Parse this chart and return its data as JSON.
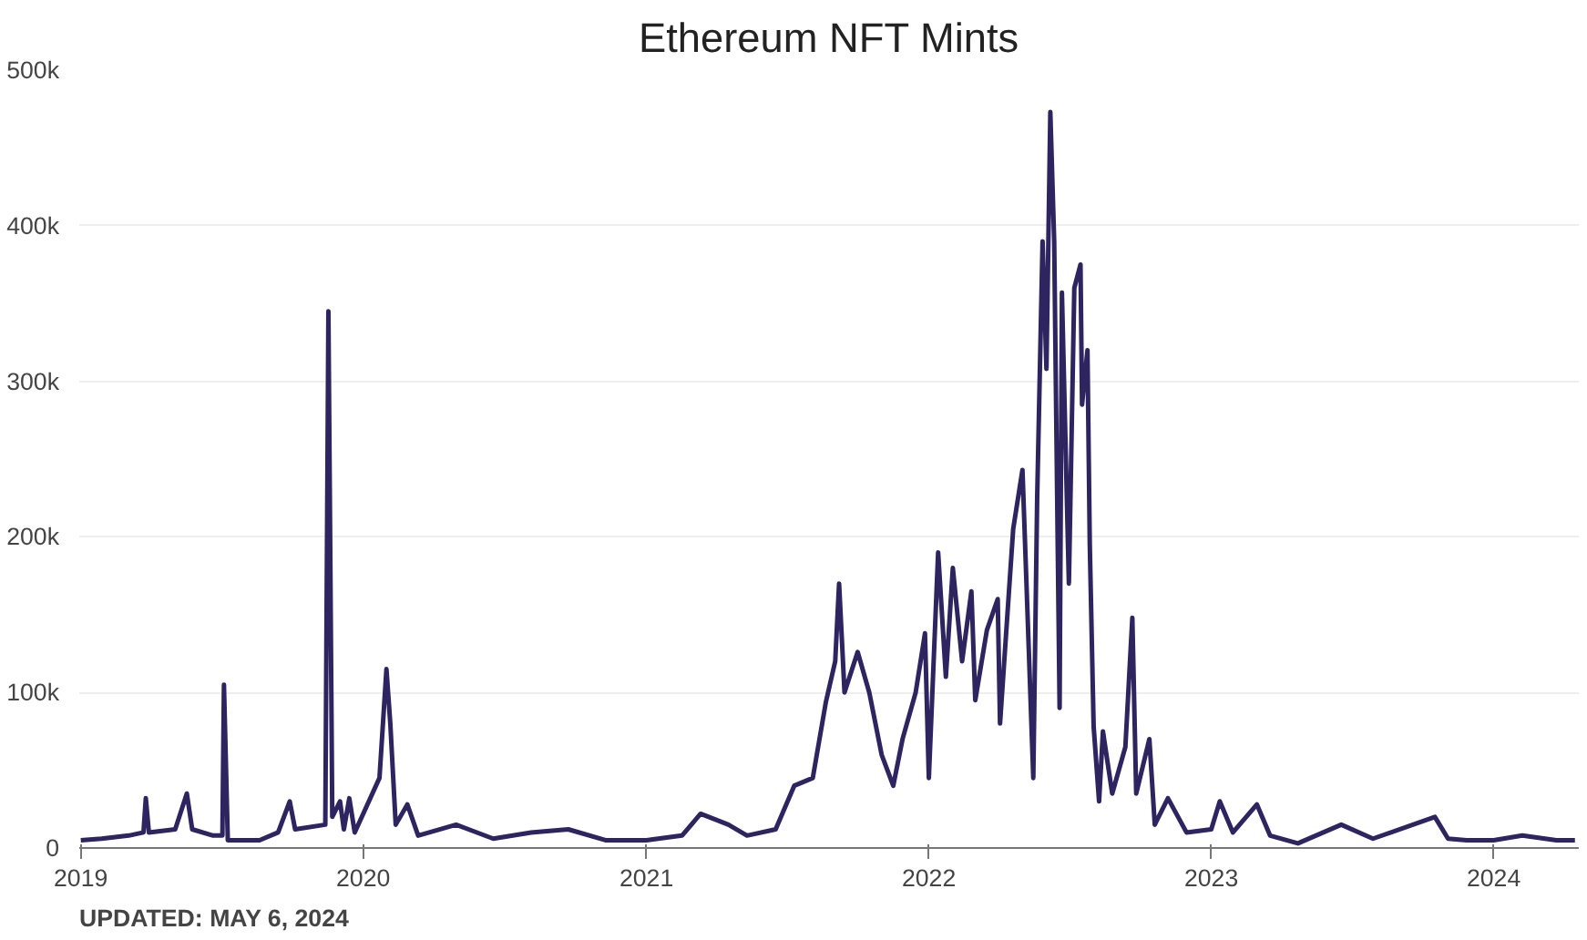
{
  "chart_data": {
    "type": "line",
    "title": "Ethereum NFT Mints",
    "annotations": [
      "UPDATED: MAY 6, 2024"
    ],
    "x": [
      "2019-01-01",
      "2019-01-28",
      "2019-03-04",
      "2019-03-23",
      "2019-03-26",
      "2019-03-30",
      "2019-05-03",
      "2019-05-18",
      "2019-05-25",
      "2019-06-21",
      "2019-07-03",
      "2019-07-05",
      "2019-07-10",
      "2019-08-20",
      "2019-09-13",
      "2019-09-28",
      "2019-10-05",
      "2019-11-13",
      "2019-11-17",
      "2019-11-22",
      "2019-12-02",
      "2019-12-07",
      "2019-12-14",
      "2019-12-21",
      "2020-01-22",
      "2020-01-31",
      "2020-02-05",
      "2020-02-12",
      "2020-02-27",
      "2020-03-12",
      "2020-04-30",
      "2020-06-17",
      "2020-08-05",
      "2020-09-22",
      "2020-11-09",
      "2021-01-01",
      "2021-02-16",
      "2021-03-12",
      "2021-04-17",
      "2021-05-11",
      "2021-06-17",
      "2021-07-11",
      "2021-08-04",
      "2021-08-21",
      "2021-09-02",
      "2021-09-07",
      "2021-09-14",
      "2021-10-01",
      "2021-10-16",
      "2021-11-01",
      "2021-11-16",
      "2021-11-28",
      "2021-12-15",
      "2021-12-27",
      "2022-01-01",
      "2022-01-13",
      "2022-01-23",
      "2022-02-01",
      "2022-02-13",
      "2022-02-25",
      "2022-03-02",
      "2022-03-17",
      "2022-03-31",
      "2022-04-03",
      "2022-04-20",
      "2022-05-02",
      "2022-05-16",
      "2022-05-21",
      "2022-05-28",
      "2022-06-02",
      "2022-06-07",
      "2022-06-12",
      "2022-06-19",
      "2022-06-22",
      "2022-07-01",
      "2022-07-08",
      "2022-07-16",
      "2022-07-18",
      "2022-07-25",
      "2022-07-28",
      "2022-08-02",
      "2022-08-09",
      "2022-08-14",
      "2022-08-26",
      "2022-09-12",
      "2022-09-21",
      "2022-09-26",
      "2022-10-13",
      "2022-10-20",
      "2022-11-06",
      "2022-11-30",
      "2023-01-01",
      "2023-01-12",
      "2023-01-29",
      "2023-03-01",
      "2023-03-18",
      "2023-04-23",
      "2023-06-18",
      "2023-07-29",
      "2023-10-17",
      "2023-11-03",
      "2023-11-27",
      "2024-01-01",
      "2024-02-07",
      "2024-03-22",
      "2024-04-15"
    ],
    "series": [
      {
        "color": "#2d2460",
        "values": [
          5000,
          6000,
          8000,
          10000,
          32000,
          10000,
          12000,
          35000,
          12000,
          8000,
          8000,
          105000,
          5000,
          5000,
          10000,
          30000,
          12000,
          15000,
          345000,
          20000,
          30000,
          12000,
          32000,
          10000,
          45000,
          115000,
          80000,
          15000,
          28000,
          8000,
          15000,
          6000,
          10000,
          12000,
          5000,
          5000,
          8000,
          22000,
          15000,
          8000,
          12000,
          40000,
          45000,
          94000,
          120000,
          170000,
          100000,
          126000,
          100000,
          60000,
          40000,
          70000,
          100000,
          138000,
          45000,
          190000,
          110000,
          180000,
          120000,
          165000,
          95000,
          140000,
          160000,
          80000,
          205000,
          243000,
          45000,
          225000,
          390000,
          308000,
          473000,
          390000,
          90000,
          357000,
          170000,
          360000,
          375000,
          285000,
          320000,
          195000,
          78000,
          30000,
          75000,
          35000,
          65000,
          148000,
          35000,
          70000,
          15000,
          32000,
          10000,
          12000,
          30000,
          10000,
          28000,
          8000,
          3000,
          15000,
          6000,
          20000,
          6000,
          5000,
          5000,
          8000,
          5000,
          5000
        ]
      }
    ],
    "xlim": [
      "2018-12-30",
      "2024-04-20"
    ],
    "xticks": [
      {
        "value": "2019-01-01",
        "label": "2019"
      },
      {
        "value": "2020-01-01",
        "label": "2020"
      },
      {
        "value": "2021-01-01",
        "label": "2021"
      },
      {
        "value": "2022-01-01",
        "label": "2022"
      },
      {
        "value": "2023-01-01",
        "label": "2023"
      },
      {
        "value": "2024-01-01",
        "label": "2024"
      }
    ],
    "ylim": [
      0,
      500000
    ],
    "yticks": [
      {
        "value": 0,
        "label": "0"
      },
      {
        "value": 100000,
        "label": "100k"
      },
      {
        "value": 200000,
        "label": "200k"
      },
      {
        "value": 300000,
        "label": "300k"
      },
      {
        "value": 400000,
        "label": "400k"
      },
      {
        "value": 500000,
        "label": "500k"
      }
    ],
    "grid": "y",
    "marker": "none",
    "line_style": "solid"
  }
}
